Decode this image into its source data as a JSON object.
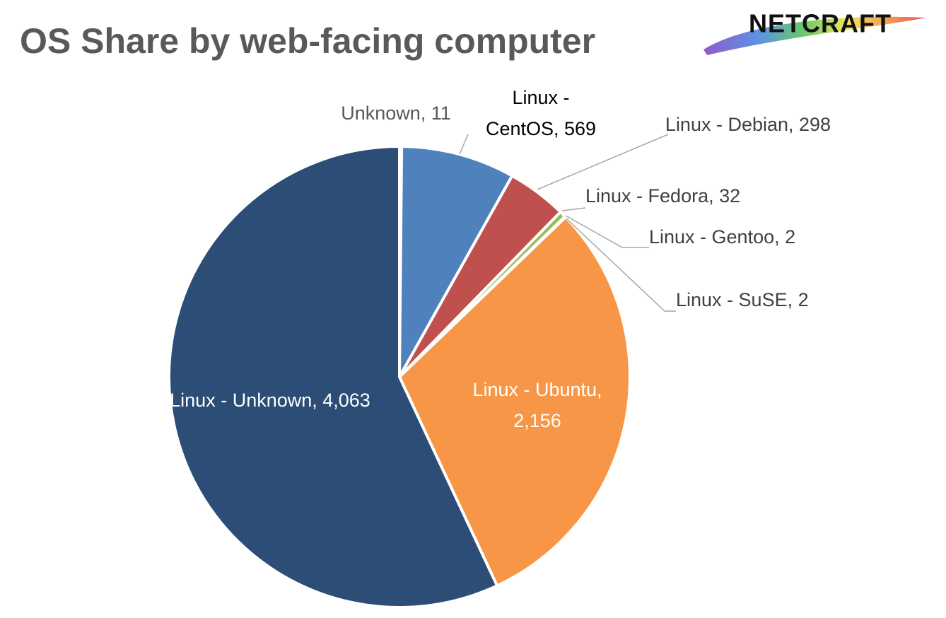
{
  "chart_data": {
    "type": "pie",
    "title": "OS Share by web-facing computer",
    "logo": "NETCRAFT",
    "values": [
      11,
      569,
      298,
      32,
      2,
      2,
      2156,
      4063
    ],
    "value_labels": [
      "Unknown, 11",
      "Linux - CentOS, 569",
      "Linux - Debian, 298",
      "Linux - Fedora, 32",
      "Linux - Gentoo, 2",
      "Linux - SuSE, 2",
      "Linux - Ubuntu, 2,156",
      "Linux - Unknown, 4,063"
    ],
    "colors": [
      "#2c4d75",
      "#4f81bd",
      "#c0504d",
      "#9bbb59",
      "#8064a2",
      "#4bacc6",
      "#f79646",
      "#2c4d75"
    ]
  }
}
